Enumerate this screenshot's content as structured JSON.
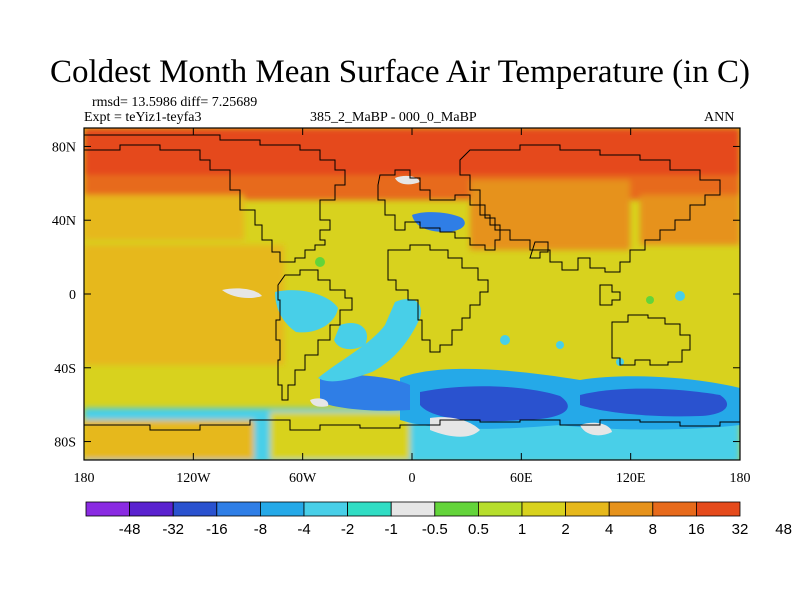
{
  "title": "Coldest Month Mean Surface Air Temperature (in C)",
  "stats": {
    "rmsd_line": "rmsd= 13.5986 diff= 7.25689",
    "expt_line": "Expt = teYiz1-teyfa3"
  },
  "subtitle_center": "385_2_MaBP - 000_0_MaBP",
  "subtitle_right": "ANN",
  "map": {
    "lon_range": [
      -180,
      180
    ],
    "lat_range": [
      -90,
      90
    ],
    "lon_ticks": [
      {
        "value": -180,
        "label": "180"
      },
      {
        "value": -120,
        "label": "120W"
      },
      {
        "value": -60,
        "label": "60W"
      },
      {
        "value": 0,
        "label": "0"
      },
      {
        "value": 60,
        "label": "60E"
      },
      {
        "value": 120,
        "label": "120E"
      },
      {
        "value": 180,
        "label": "180"
      }
    ],
    "lat_ticks": [
      {
        "value": 80,
        "label": "80N"
      },
      {
        "value": 40,
        "label": "40N"
      },
      {
        "value": 0,
        "label": "0"
      },
      {
        "value": -40,
        "label": "40S"
      },
      {
        "value": -80,
        "label": "80S"
      }
    ]
  },
  "colorbar": {
    "colors": [
      "#8a2be2",
      "#5a22cf",
      "#2a52cf",
      "#2f7ee6",
      "#25a9e8",
      "#48cfe8",
      "#30ddc4",
      "#e6e6e6",
      "#63d43a",
      "#b6de2c",
      "#d8d21e",
      "#e6b81b",
      "#e6921b",
      "#e76a1b",
      "#e54a1b"
    ],
    "labels": [
      "-48",
      "-32",
      "-16",
      "-8",
      "-4",
      "-2",
      "-1",
      "-0.5",
      "0.5",
      "1",
      "2",
      "4",
      "8",
      "16",
      "32",
      "48"
    ]
  }
}
